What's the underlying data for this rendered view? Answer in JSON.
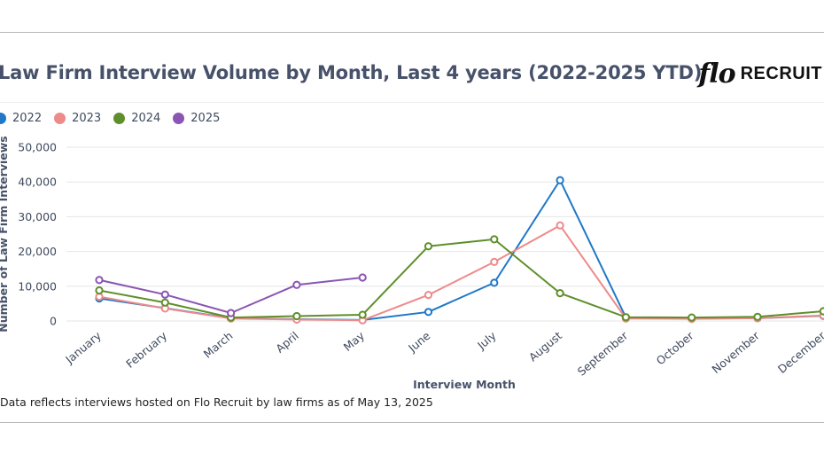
{
  "header": {
    "title": "Law Firm Interview Volume by Month, Last 4 years (2022-2025 YTD)",
    "logo_script": "flo",
    "logo_word": "RECRUIT"
  },
  "footnote": "Data reflects interviews hosted on Flo Recruit by law firms as of May 13, 2025",
  "colors": {
    "2022": "#1f78c8",
    "2023": "#ee8a8a",
    "2024": "#5e8f2a",
    "2025": "#8a55b3",
    "grid": "#e6e6e6"
  },
  "chart_data": {
    "type": "line",
    "title": "Law Firm Interview Volume by Month, Last 4 years (2022-2025 YTD)",
    "xlabel": "Interview Month",
    "ylabel": "Number of Law Firm Interviews",
    "categories": [
      "January",
      "February",
      "March",
      "April",
      "May",
      "June",
      "July",
      "August",
      "September",
      "October",
      "November",
      "December"
    ],
    "ylim": [
      0,
      50000
    ],
    "yticks": [
      0,
      10000,
      20000,
      30000,
      40000,
      50000
    ],
    "ytick_labels": [
      "0",
      "10,000",
      "20,000",
      "30,000",
      "40,000",
      "50,000"
    ],
    "grid": true,
    "legend_position": "top-left",
    "series": [
      {
        "name": "2022",
        "values": [
          6500,
          3700,
          800,
          500,
          300,
          2600,
          11000,
          40500,
          1000,
          700,
          800,
          1500
        ]
      },
      {
        "name": "2023",
        "values": [
          7000,
          3600,
          700,
          400,
          200,
          7500,
          17000,
          27500,
          700,
          600,
          800,
          1600
        ]
      },
      {
        "name": "2024",
        "values": [
          8800,
          5300,
          1000,
          1400,
          1800,
          21500,
          23500,
          8000,
          1100,
          1000,
          1200,
          2800
        ]
      },
      {
        "name": "2025",
        "values": [
          11800,
          7600,
          2300,
          10400,
          12500,
          null,
          null,
          null,
          null,
          null,
          null,
          null
        ]
      }
    ]
  }
}
